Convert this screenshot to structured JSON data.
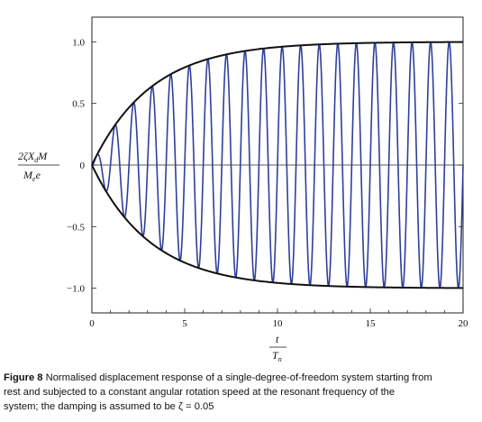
{
  "chart_data": {
    "type": "line",
    "xlim": [
      0,
      20
    ],
    "ylim": [
      -1.2,
      1.2
    ],
    "x_ticks": [
      "0",
      "5",
      "10",
      "15",
      "20"
    ],
    "y_ticks": [
      "1.0",
      "0.5",
      "0",
      "−0.5",
      "−1.0"
    ],
    "grid": false,
    "damping_ratio": 0.05,
    "series": [
      {
        "color": "#2f3f9a",
        "equation": "y = (1 - exp(-2*pi*0.05*t)) * sin(2*pi*t)",
        "x_range": [
          0,
          20
        ]
      },
      {
        "color": "#111111",
        "equation": "y = 1 - exp(-2*pi*0.05*t)",
        "x_range": [
          0,
          20
        ]
      },
      {
        "color": "#111111",
        "equation": "y = -(1 - exp(-2*pi*0.05*t))",
        "x_range": [
          0,
          20
        ]
      }
    ]
  },
  "ylabel": {
    "num": "2ζX",
    "num_sub": "d",
    "num_end": "M",
    "den": "M",
    "den_sub": "e",
    "den_end": "e"
  },
  "xlabel": {
    "num": "t",
    "den": "T",
    "den_sub": "n"
  },
  "caption": {
    "label": "Figure 8",
    "line1": "Normalised displacement response of a single-degree-of-freedom system starting from",
    "line2": "rest and subjected to a constant angular rotation speed at the resonant frequency of the",
    "line3": "system; the damping is assumed to be ζ = 0.05"
  }
}
